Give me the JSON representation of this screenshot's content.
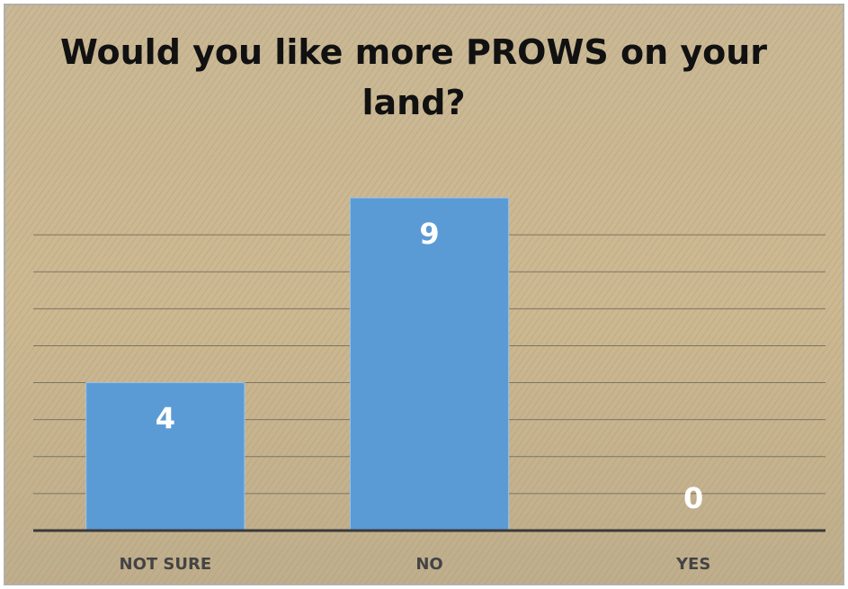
{
  "chart_data": {
    "type": "bar",
    "title": "Would you like more PROWS on your land?",
    "categories": [
      "NOT SURE",
      "NO",
      "YES"
    ],
    "values": [
      4,
      9,
      0
    ],
    "color": "#5b9bd5",
    "ylim": [
      0,
      9
    ],
    "yticks": [
      0,
      1,
      2,
      3,
      4,
      5,
      6,
      7,
      8
    ],
    "grid": true
  }
}
